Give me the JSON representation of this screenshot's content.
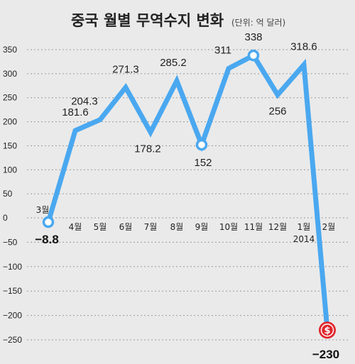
{
  "header": {
    "title": "중국 월별 무역수지 변화",
    "unit": "(단위: 억 달러)"
  },
  "colors": {
    "line": "#4aa8f0",
    "marker_open_fill": "#ffffff",
    "marker_dollar": "#e0262d",
    "background": "#eaeaea"
  },
  "chart_data": {
    "type": "line",
    "title": "중국 월별 무역수지 변화",
    "unit": "(단위: 억 달러)",
    "categories": [
      "3월",
      "4월",
      "5월",
      "6월",
      "7월",
      "8월",
      "9월",
      "10월",
      "11월",
      "12월",
      "1월",
      "2월"
    ],
    "year_label": "2014",
    "year_label_at": "1월",
    "series": [
      {
        "values": [
          -8.8,
          181.6,
          204.3,
          271.3,
          178.2,
          285.2,
          152,
          311,
          338,
          256,
          318.6,
          -230
        ],
        "point_labels": [
          "−8.8",
          "181.6",
          "204.3",
          "271.3",
          "178.2",
          "285.2",
          "152",
          "311",
          "338",
          "256",
          "318.6",
          "−230"
        ]
      }
    ],
    "yticks": [
      "350",
      "300",
      "250",
      "200",
      "150",
      "100",
      "50",
      "0",
      "−50",
      "−100",
      "−150",
      "−200",
      "−250"
    ],
    "ytick_values": [
      350,
      300,
      250,
      200,
      150,
      100,
      50,
      0,
      -50,
      -100,
      -150,
      -200,
      -250
    ],
    "ylim": [
      -250,
      350
    ],
    "grid": true,
    "dollar_marker_icon": "dollar-coin-icon",
    "open_marker_indices": [
      0,
      6,
      8
    ],
    "dollar_marker_index": 11
  }
}
